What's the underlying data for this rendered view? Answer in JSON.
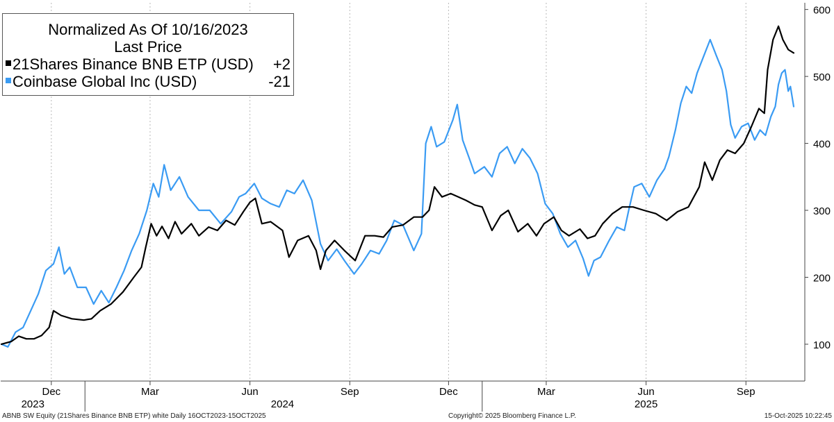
{
  "chart_data": {
    "type": "line",
    "title": "",
    "xlabel": "",
    "ylabel": "",
    "ylim": [
      45,
      610
    ],
    "y_ticks": [
      100,
      200,
      300,
      400,
      500,
      600
    ],
    "axis_position": "right",
    "grid": "vertical dashed",
    "legend_position": "top-left",
    "x_range": [
      "2023-10-16",
      "2025-10-15"
    ],
    "x_ticks": [
      {
        "label": "Dec",
        "date": "2023-12-01"
      },
      {
        "label": "Mar",
        "date": "2024-03-01"
      },
      {
        "label": "Jun",
        "date": "2024-06-01"
      },
      {
        "label": "Sep",
        "date": "2024-09-01"
      },
      {
        "label": "Dec",
        "date": "2024-12-01"
      },
      {
        "label": "Mar",
        "date": "2025-03-01"
      },
      {
        "label": "Jun",
        "date": "2025-06-01"
      },
      {
        "label": "Sep",
        "date": "2025-09-01"
      }
    ],
    "year_labels": [
      {
        "label": "2023",
        "date": "2023-11-14"
      },
      {
        "label": "2024",
        "date": "2024-07-01"
      },
      {
        "label": "2025",
        "date": "2025-06-01"
      }
    ],
    "year_dividers": [
      "2024-01-01",
      "2025-01-01"
    ],
    "series": [
      {
        "name": "21Shares Binance BNB ETP (USD)",
        "color": "#000000",
        "points": [
          [
            "2023-10-16",
            100
          ],
          [
            "2023-10-25",
            104
          ],
          [
            "2023-11-01",
            112
          ],
          [
            "2023-11-08",
            108
          ],
          [
            "2023-11-15",
            108
          ],
          [
            "2023-11-22",
            113
          ],
          [
            "2023-11-29",
            125
          ],
          [
            "2023-12-03",
            150
          ],
          [
            "2023-12-10",
            143
          ],
          [
            "2023-12-20",
            138
          ],
          [
            "2023-12-31",
            136
          ],
          [
            "2024-01-07",
            138
          ],
          [
            "2024-01-15",
            150
          ],
          [
            "2024-01-25",
            160
          ],
          [
            "2024-02-05",
            178
          ],
          [
            "2024-02-15",
            200
          ],
          [
            "2024-02-22",
            215
          ],
          [
            "2024-02-26",
            245
          ],
          [
            "2024-03-02",
            280
          ],
          [
            "2024-03-07",
            262
          ],
          [
            "2024-03-12",
            276
          ],
          [
            "2024-03-18",
            258
          ],
          [
            "2024-03-24",
            283
          ],
          [
            "2024-03-30",
            265
          ],
          [
            "2024-04-08",
            280
          ],
          [
            "2024-04-15",
            262
          ],
          [
            "2024-04-24",
            275
          ],
          [
            "2024-05-02",
            270
          ],
          [
            "2024-05-10",
            285
          ],
          [
            "2024-05-18",
            278
          ],
          [
            "2024-05-26",
            298
          ],
          [
            "2024-06-01",
            312
          ],
          [
            "2024-06-06",
            318
          ],
          [
            "2024-06-12",
            280
          ],
          [
            "2024-06-20",
            283
          ],
          [
            "2024-07-01",
            270
          ],
          [
            "2024-07-07",
            230
          ],
          [
            "2024-07-15",
            255
          ],
          [
            "2024-07-25",
            262
          ],
          [
            "2024-08-01",
            240
          ],
          [
            "2024-08-05",
            212
          ],
          [
            "2024-08-10",
            240
          ],
          [
            "2024-08-18",
            255
          ],
          [
            "2024-08-27",
            240
          ],
          [
            "2024-09-06",
            225
          ],
          [
            "2024-09-15",
            262
          ],
          [
            "2024-09-24",
            262
          ],
          [
            "2024-10-02",
            260
          ],
          [
            "2024-10-10",
            275
          ],
          [
            "2024-10-20",
            278
          ],
          [
            "2024-10-30",
            290
          ],
          [
            "2024-11-07",
            290
          ],
          [
            "2024-11-13",
            300
          ],
          [
            "2024-11-18",
            335
          ],
          [
            "2024-11-25",
            320
          ],
          [
            "2024-12-03",
            325
          ],
          [
            "2024-12-10",
            320
          ],
          [
            "2024-12-17",
            315
          ],
          [
            "2024-12-25",
            308
          ],
          [
            "2025-01-01",
            305
          ],
          [
            "2025-01-10",
            270
          ],
          [
            "2025-01-18",
            292
          ],
          [
            "2025-01-25",
            300
          ],
          [
            "2025-02-03",
            268
          ],
          [
            "2025-02-12",
            280
          ],
          [
            "2025-02-20",
            262
          ],
          [
            "2025-02-27",
            280
          ],
          [
            "2025-03-08",
            290
          ],
          [
            "2025-03-15",
            270
          ],
          [
            "2025-03-22",
            262
          ],
          [
            "2025-04-01",
            272
          ],
          [
            "2025-04-08",
            258
          ],
          [
            "2025-04-15",
            262
          ],
          [
            "2025-04-22",
            280
          ],
          [
            "2025-05-01",
            295
          ],
          [
            "2025-05-10",
            305
          ],
          [
            "2025-05-20",
            305
          ],
          [
            "2025-05-30",
            300
          ],
          [
            "2025-06-10",
            295
          ],
          [
            "2025-06-20",
            285
          ],
          [
            "2025-06-30",
            298
          ],
          [
            "2025-07-10",
            305
          ],
          [
            "2025-07-20",
            335
          ],
          [
            "2025-07-25",
            372
          ],
          [
            "2025-08-01",
            345
          ],
          [
            "2025-08-08",
            375
          ],
          [
            "2025-08-15",
            390
          ],
          [
            "2025-08-22",
            385
          ],
          [
            "2025-08-30",
            400
          ],
          [
            "2025-09-06",
            425
          ],
          [
            "2025-09-13",
            452
          ],
          [
            "2025-09-18",
            445
          ],
          [
            "2025-09-21",
            510
          ],
          [
            "2025-09-26",
            555
          ],
          [
            "2025-10-01",
            575
          ],
          [
            "2025-10-05",
            555
          ],
          [
            "2025-10-10",
            540
          ],
          [
            "2025-10-15",
            535
          ]
        ],
        "last_value": 535,
        "legend_value": "+2"
      },
      {
        "name": "Coinbase Global Inc (USD)",
        "color": "#3a9bf3",
        "points": [
          [
            "2023-10-16",
            100
          ],
          [
            "2023-10-22",
            96
          ],
          [
            "2023-10-29",
            118
          ],
          [
            "2023-11-05",
            125
          ],
          [
            "2023-11-12",
            150
          ],
          [
            "2023-11-19",
            175
          ],
          [
            "2023-11-26",
            210
          ],
          [
            "2023-12-03",
            220
          ],
          [
            "2023-12-08",
            245
          ],
          [
            "2023-12-13",
            205
          ],
          [
            "2023-12-18",
            215
          ],
          [
            "2023-12-25",
            185
          ],
          [
            "2024-01-02",
            185
          ],
          [
            "2024-01-09",
            160
          ],
          [
            "2024-01-16",
            180
          ],
          [
            "2024-01-23",
            162
          ],
          [
            "2024-01-30",
            185
          ],
          [
            "2024-02-06",
            210
          ],
          [
            "2024-02-13",
            240
          ],
          [
            "2024-02-20",
            265
          ],
          [
            "2024-02-27",
            300
          ],
          [
            "2024-03-04",
            340
          ],
          [
            "2024-03-09",
            320
          ],
          [
            "2024-03-14",
            368
          ],
          [
            "2024-03-20",
            330
          ],
          [
            "2024-03-28",
            350
          ],
          [
            "2024-04-05",
            320
          ],
          [
            "2024-04-15",
            300
          ],
          [
            "2024-04-25",
            300
          ],
          [
            "2024-05-05",
            280
          ],
          [
            "2024-05-15",
            298
          ],
          [
            "2024-05-22",
            320
          ],
          [
            "2024-05-28",
            325
          ],
          [
            "2024-06-05",
            340
          ],
          [
            "2024-06-12",
            318
          ],
          [
            "2024-06-20",
            310
          ],
          [
            "2024-06-28",
            305
          ],
          [
            "2024-07-05",
            330
          ],
          [
            "2024-07-12",
            325
          ],
          [
            "2024-07-20",
            345
          ],
          [
            "2024-07-28",
            315
          ],
          [
            "2024-08-05",
            250
          ],
          [
            "2024-08-12",
            225
          ],
          [
            "2024-08-20",
            242
          ],
          [
            "2024-08-27",
            225
          ],
          [
            "2024-09-05",
            205
          ],
          [
            "2024-09-12",
            220
          ],
          [
            "2024-09-20",
            240
          ],
          [
            "2024-09-28",
            235
          ],
          [
            "2024-10-05",
            255
          ],
          [
            "2024-10-12",
            285
          ],
          [
            "2024-10-20",
            278
          ],
          [
            "2024-10-30",
            240
          ],
          [
            "2024-11-06",
            265
          ],
          [
            "2024-11-10",
            400
          ],
          [
            "2024-11-15",
            425
          ],
          [
            "2024-11-20",
            395
          ],
          [
            "2024-11-27",
            402
          ],
          [
            "2024-12-05",
            435
          ],
          [
            "2024-12-09",
            458
          ],
          [
            "2024-12-14",
            405
          ],
          [
            "2024-12-20",
            378
          ],
          [
            "2024-12-25",
            355
          ],
          [
            "2025-01-03",
            365
          ],
          [
            "2025-01-10",
            350
          ],
          [
            "2025-01-17",
            385
          ],
          [
            "2025-01-24",
            395
          ],
          [
            "2025-01-31",
            370
          ],
          [
            "2025-02-07",
            392
          ],
          [
            "2025-02-14",
            378
          ],
          [
            "2025-02-21",
            355
          ],
          [
            "2025-02-28",
            310
          ],
          [
            "2025-03-07",
            295
          ],
          [
            "2025-03-14",
            265
          ],
          [
            "2025-03-21",
            245
          ],
          [
            "2025-03-28",
            255
          ],
          [
            "2025-04-04",
            228
          ],
          [
            "2025-04-09",
            202
          ],
          [
            "2025-04-14",
            225
          ],
          [
            "2025-04-20",
            230
          ],
          [
            "2025-04-28",
            255
          ],
          [
            "2025-05-05",
            275
          ],
          [
            "2025-05-12",
            270
          ],
          [
            "2025-05-16",
            300
          ],
          [
            "2025-05-21",
            335
          ],
          [
            "2025-05-28",
            340
          ],
          [
            "2025-06-04",
            320
          ],
          [
            "2025-06-11",
            345
          ],
          [
            "2025-06-18",
            362
          ],
          [
            "2025-06-22",
            380
          ],
          [
            "2025-06-28",
            420
          ],
          [
            "2025-07-03",
            460
          ],
          [
            "2025-07-08",
            485
          ],
          [
            "2025-07-13",
            475
          ],
          [
            "2025-07-18",
            505
          ],
          [
            "2025-07-24",
            530
          ],
          [
            "2025-07-30",
            555
          ],
          [
            "2025-08-05",
            530
          ],
          [
            "2025-08-10",
            510
          ],
          [
            "2025-08-14",
            478
          ],
          [
            "2025-08-18",
            428
          ],
          [
            "2025-08-22",
            408
          ],
          [
            "2025-08-28",
            425
          ],
          [
            "2025-09-03",
            430
          ],
          [
            "2025-09-09",
            405
          ],
          [
            "2025-09-14",
            420
          ],
          [
            "2025-09-19",
            412
          ],
          [
            "2025-09-24",
            440
          ],
          [
            "2025-09-28",
            455
          ],
          [
            "2025-10-01",
            488
          ],
          [
            "2025-10-04",
            505
          ],
          [
            "2025-10-07",
            510
          ],
          [
            "2025-10-10",
            478
          ],
          [
            "2025-10-12",
            485
          ],
          [
            "2025-10-15",
            455
          ]
        ],
        "last_value": 455,
        "legend_value": "-21"
      }
    ]
  },
  "legend": {
    "title": "Normalized As Of 10/16/2023",
    "subtitle": "Last Price"
  },
  "footer": {
    "left": "ABNB SW Equity (21Shares Binance BNB ETP) white Daily 16OCT2023-15OCT2025",
    "center": "Copyright© 2025 Bloomberg Finance L.P.",
    "right": "15-Oct-2025 10:22:45"
  }
}
